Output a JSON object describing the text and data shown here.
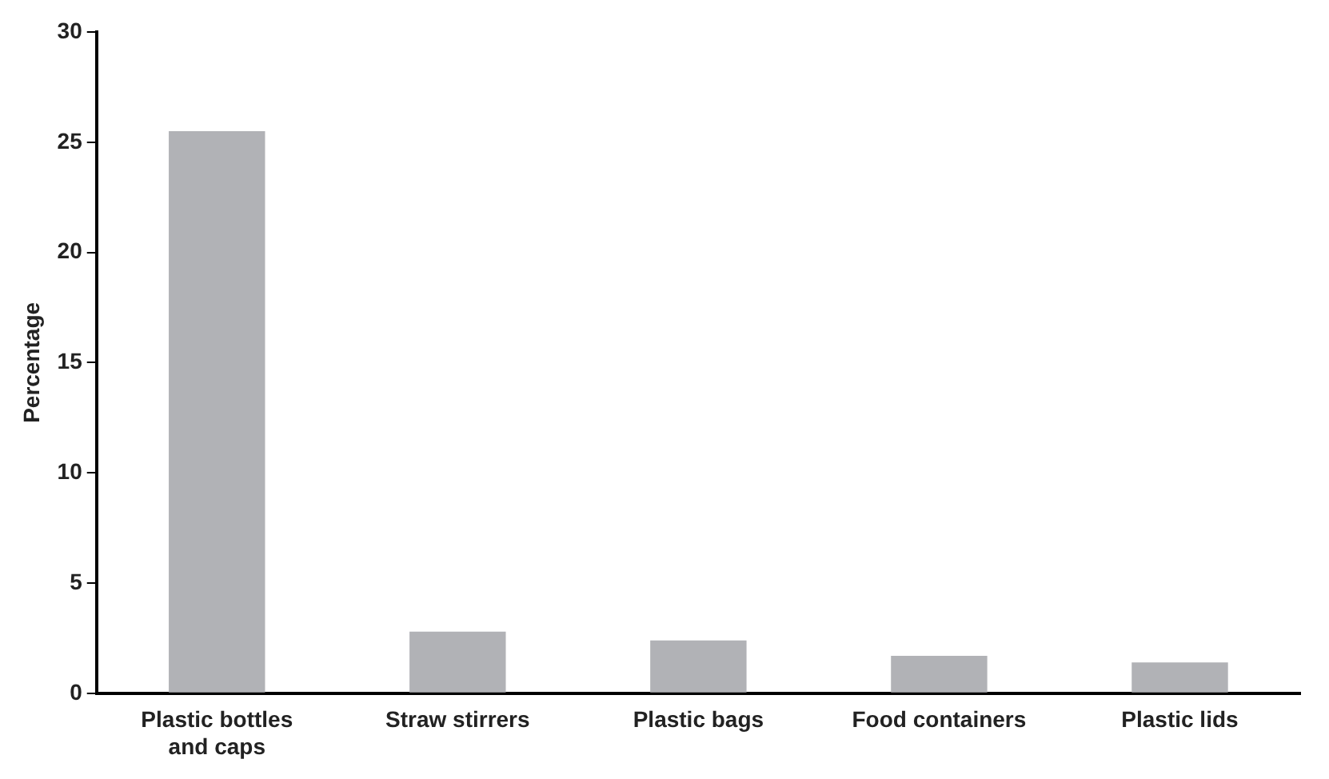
{
  "chart_data": {
    "type": "bar",
    "ylabel": "Percentage",
    "categories": [
      "Plastic bottles\nand caps",
      "Straw stirrers",
      "Plastic bags",
      "Food containers",
      "Plastic lids"
    ],
    "values": [
      25.5,
      2.8,
      2.4,
      1.7,
      1.4
    ],
    "color": "#b1b2b6",
    "ylim": [
      0,
      30
    ],
    "yticks": [
      0,
      5,
      10,
      15,
      20,
      25,
      30
    ],
    "grid": false,
    "legend": false
  }
}
